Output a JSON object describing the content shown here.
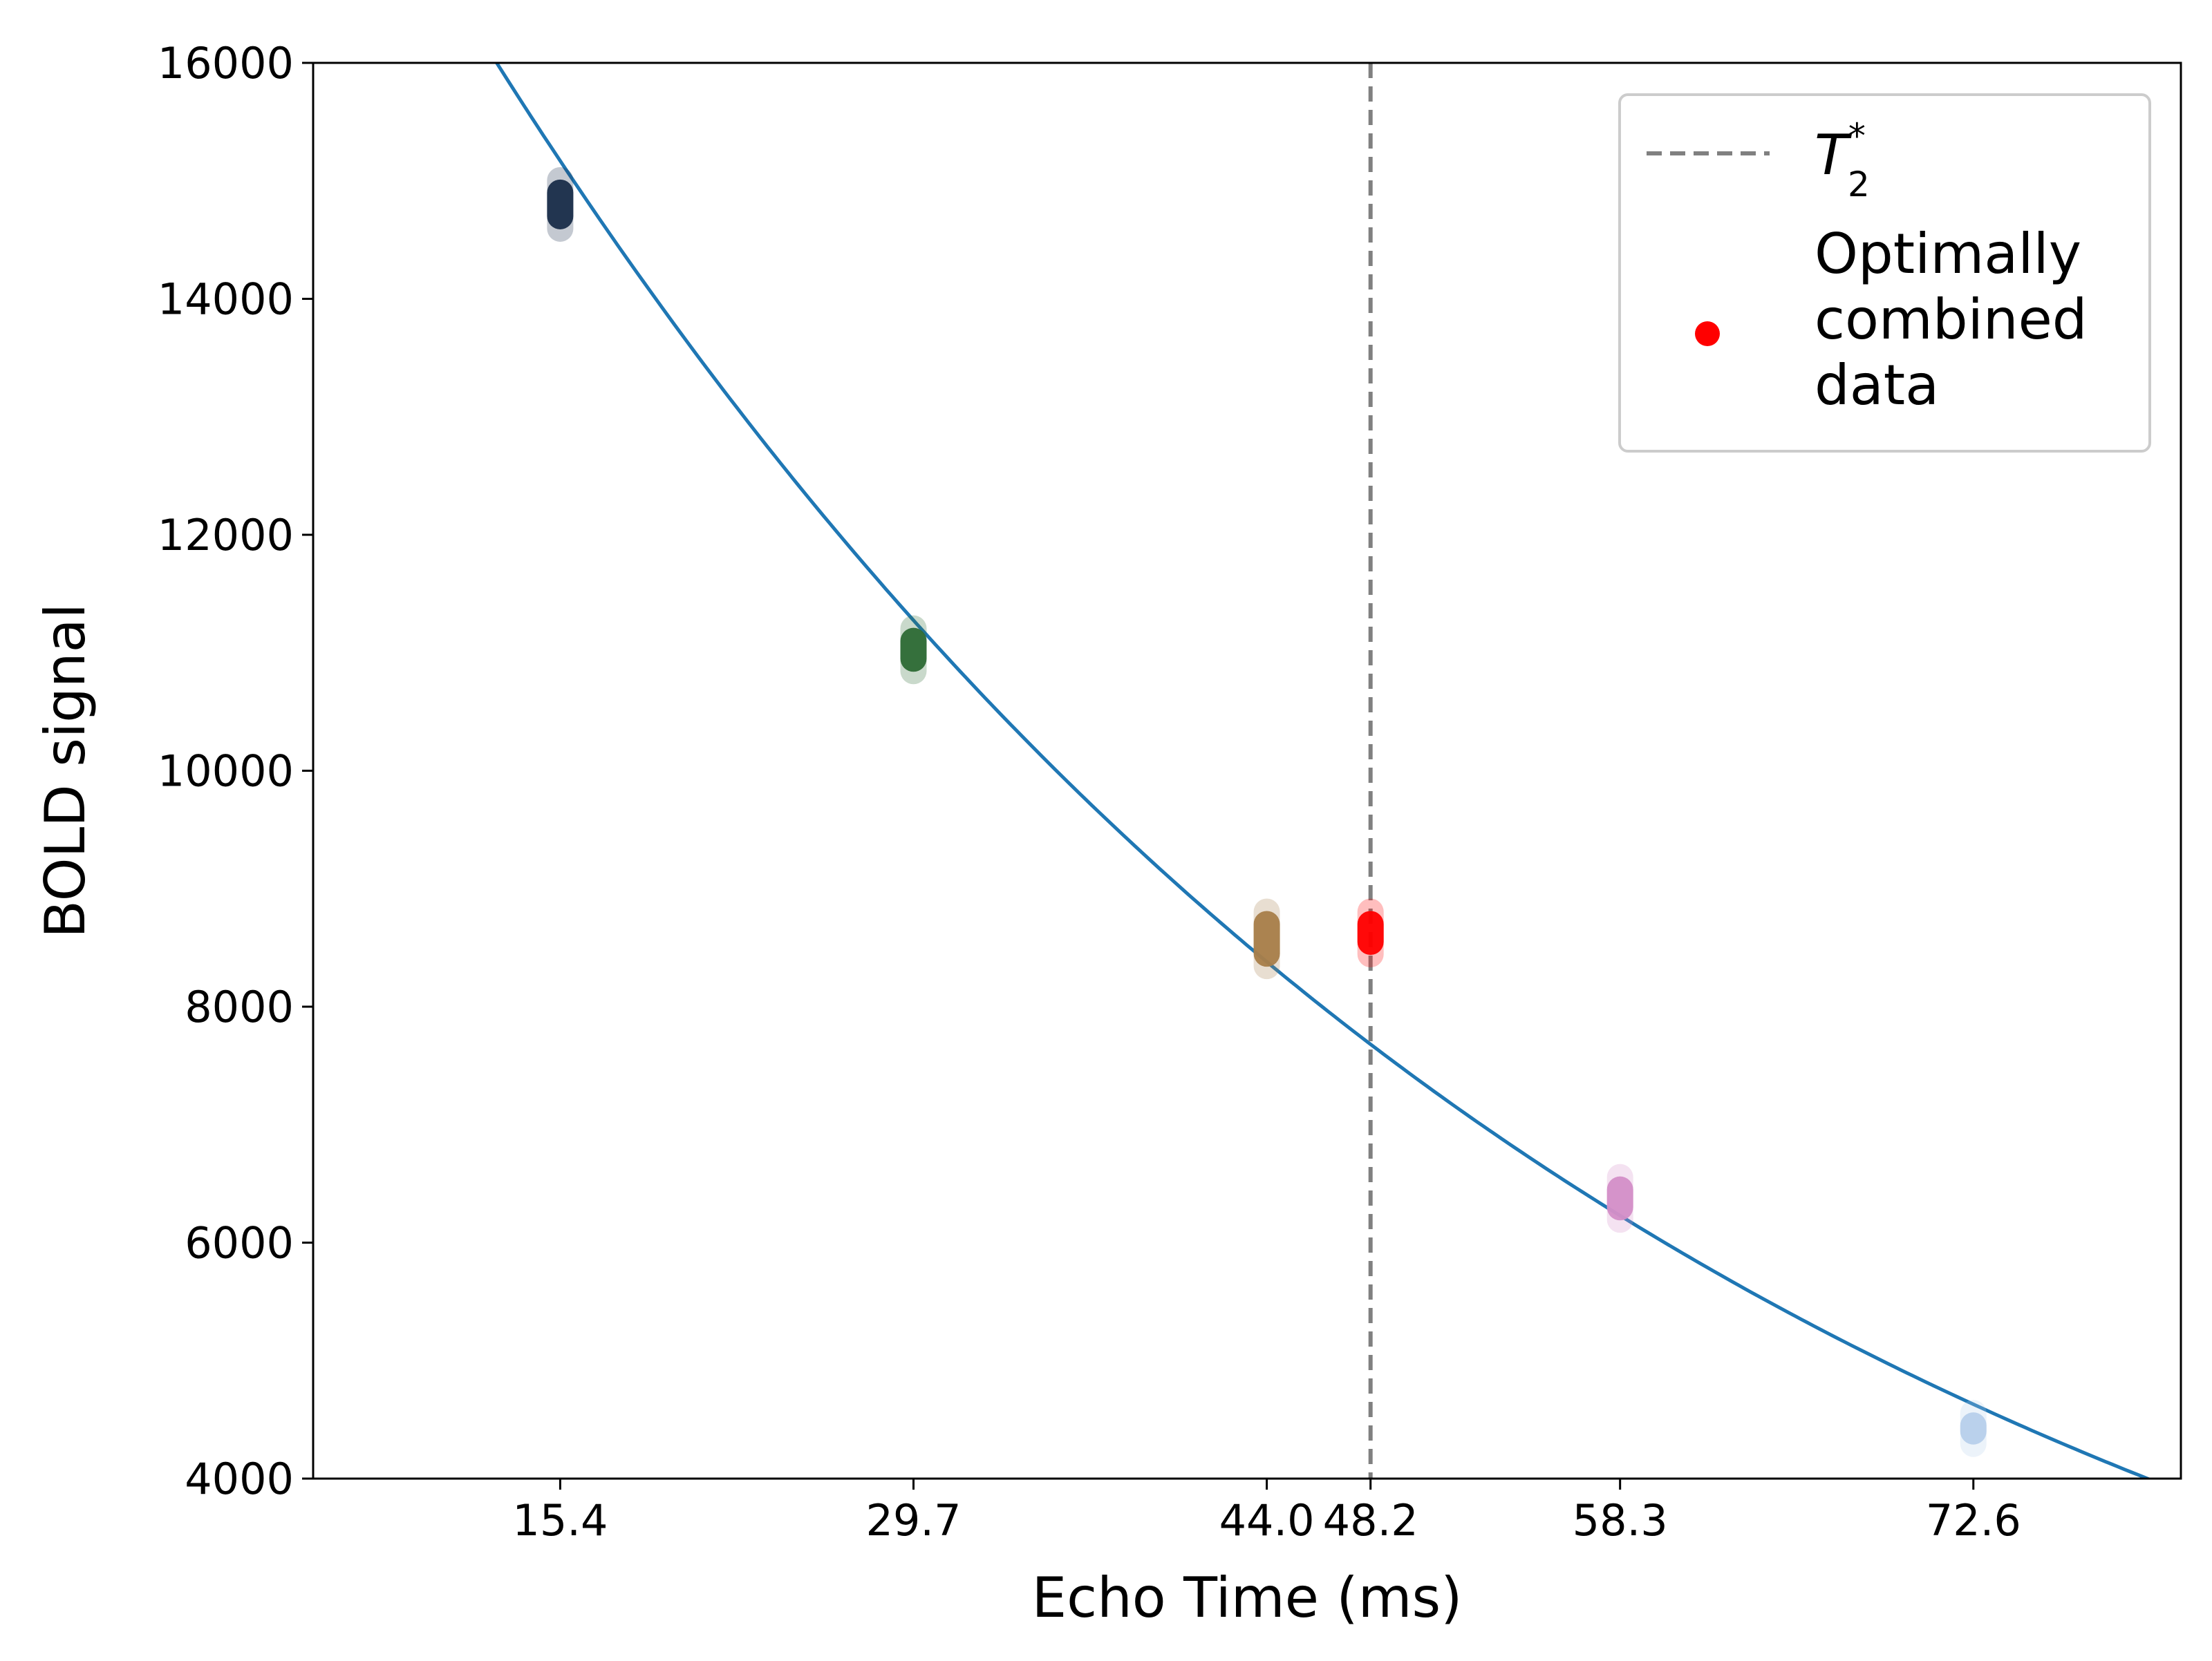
{
  "chart_data": {
    "type": "scatter",
    "title": "",
    "xlabel": "Echo Time (ms)",
    "ylabel": "BOLD signal",
    "xlim": [
      5.4,
      81.0
    ],
    "ylim": [
      4000,
      16000
    ],
    "x_ticks": [
      15.4,
      29.7,
      44.0,
      48.2,
      58.3,
      72.6
    ],
    "x_tick_labels": [
      "15.4",
      "29.7",
      "44.0",
      "48.2",
      "58.3",
      "72.6"
    ],
    "y_ticks": [
      4000,
      6000,
      8000,
      10000,
      12000,
      14000,
      16000
    ],
    "y_tick_labels": [
      "4000",
      "6000",
      "8000",
      "10000",
      "12000",
      "14000",
      "16000"
    ],
    "grid": false,
    "legend": {
      "placement": "top-right",
      "entries": [
        {
          "label_main": "T",
          "label_sub": "2",
          "label_sup": "*",
          "marker": "dashed-line",
          "color": "#808080"
        },
        {
          "label_lines": [
            "Optimally",
            "combined",
            "data"
          ],
          "marker": "dot",
          "color": "#ff0000"
        }
      ]
    },
    "fit_curve": {
      "model": "monoexponential",
      "S0": 20880,
      "T2star": 48.2,
      "color": "#1f77b4",
      "x_range": [
        5.4,
        81.0
      ]
    },
    "t2star_line": {
      "x": 48.2,
      "color": "#808080",
      "style": "dashed"
    },
    "series": [
      {
        "x": 15.4,
        "y_min": 14700,
        "y_max": 14900,
        "color": "#1a2e4a"
      },
      {
        "x": 29.7,
        "y_min": 10950,
        "y_max": 11100,
        "color": "#2e6b35"
      },
      {
        "x": 44.0,
        "y_min": 8450,
        "y_max": 8700,
        "color": "#a87f4a"
      },
      {
        "x": 58.3,
        "y_min": 6300,
        "y_max": 6450,
        "color": "#d48fc8"
      },
      {
        "x": 72.6,
        "y_min": 4400,
        "y_max": 4450,
        "color": "#b8d0ec"
      },
      {
        "name": "Optimally combined data",
        "x": 48.2,
        "y_min": 8550,
        "y_max": 8700,
        "color": "#ff0000"
      }
    ]
  }
}
